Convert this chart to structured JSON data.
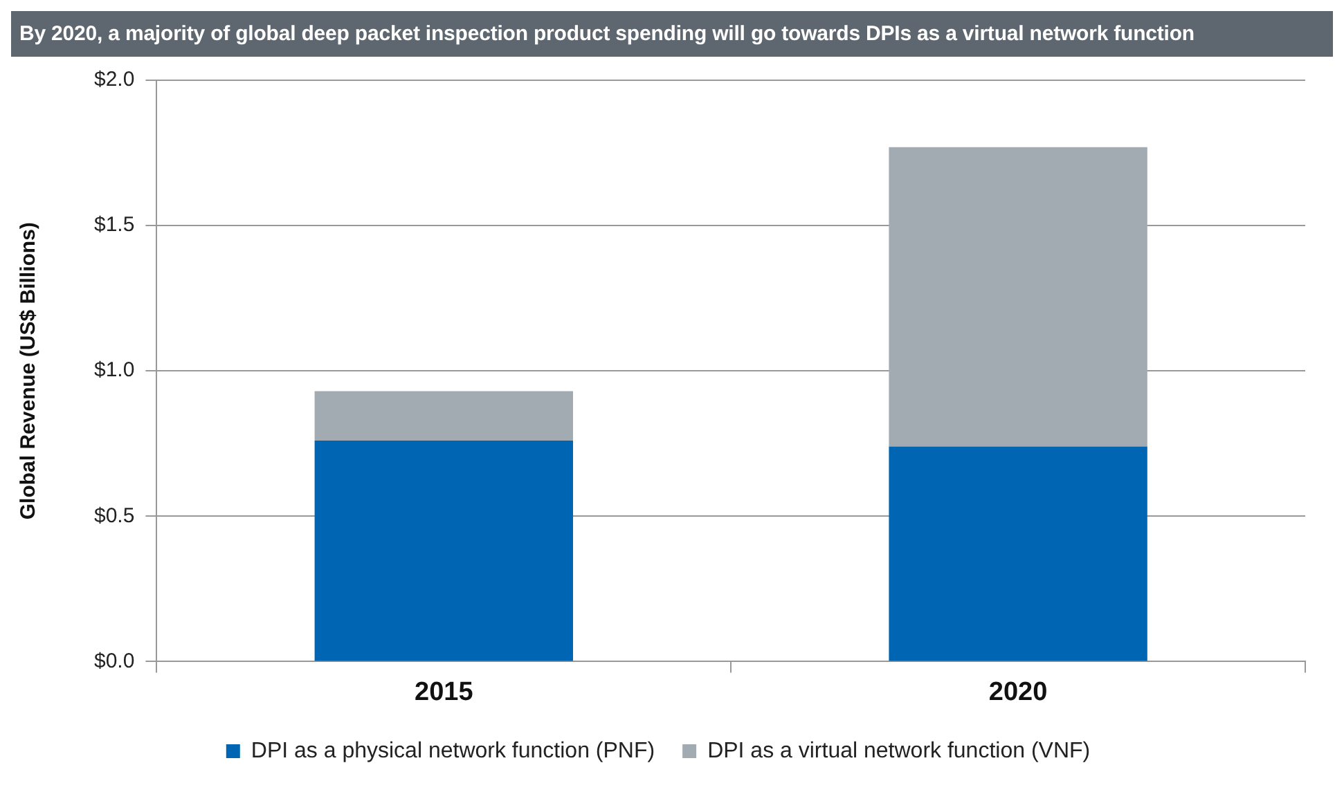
{
  "chart_data": {
    "type": "bar",
    "title": "By 2020, a majority of global deep packet inspection product spending will go towards DPIs as a virtual network function",
    "ylabel": "Global Revenue (US$ Billions)",
    "categories": [
      "2015",
      "2020"
    ],
    "stacked": true,
    "series": [
      {
        "name": "DPI as a physical network function (PNF)",
        "color": "#0066b3",
        "values": [
          0.76,
          0.74
        ]
      },
      {
        "name": "DPI as a virtual network function (VNF)",
        "color": "#a2abb2",
        "values": [
          0.17,
          1.03
        ]
      }
    ],
    "ylim": [
      0,
      2
    ],
    "yticks": [
      {
        "value": 0,
        "label": "$0.0"
      },
      {
        "value": 0.5,
        "label": "$0.5"
      },
      {
        "value": 1,
        "label": "$1.0"
      },
      {
        "value": 1.5,
        "label": "$1.5"
      },
      {
        "value": 2,
        "label": "$2.0"
      }
    ],
    "grid": "y",
    "legend": "bottom"
  }
}
